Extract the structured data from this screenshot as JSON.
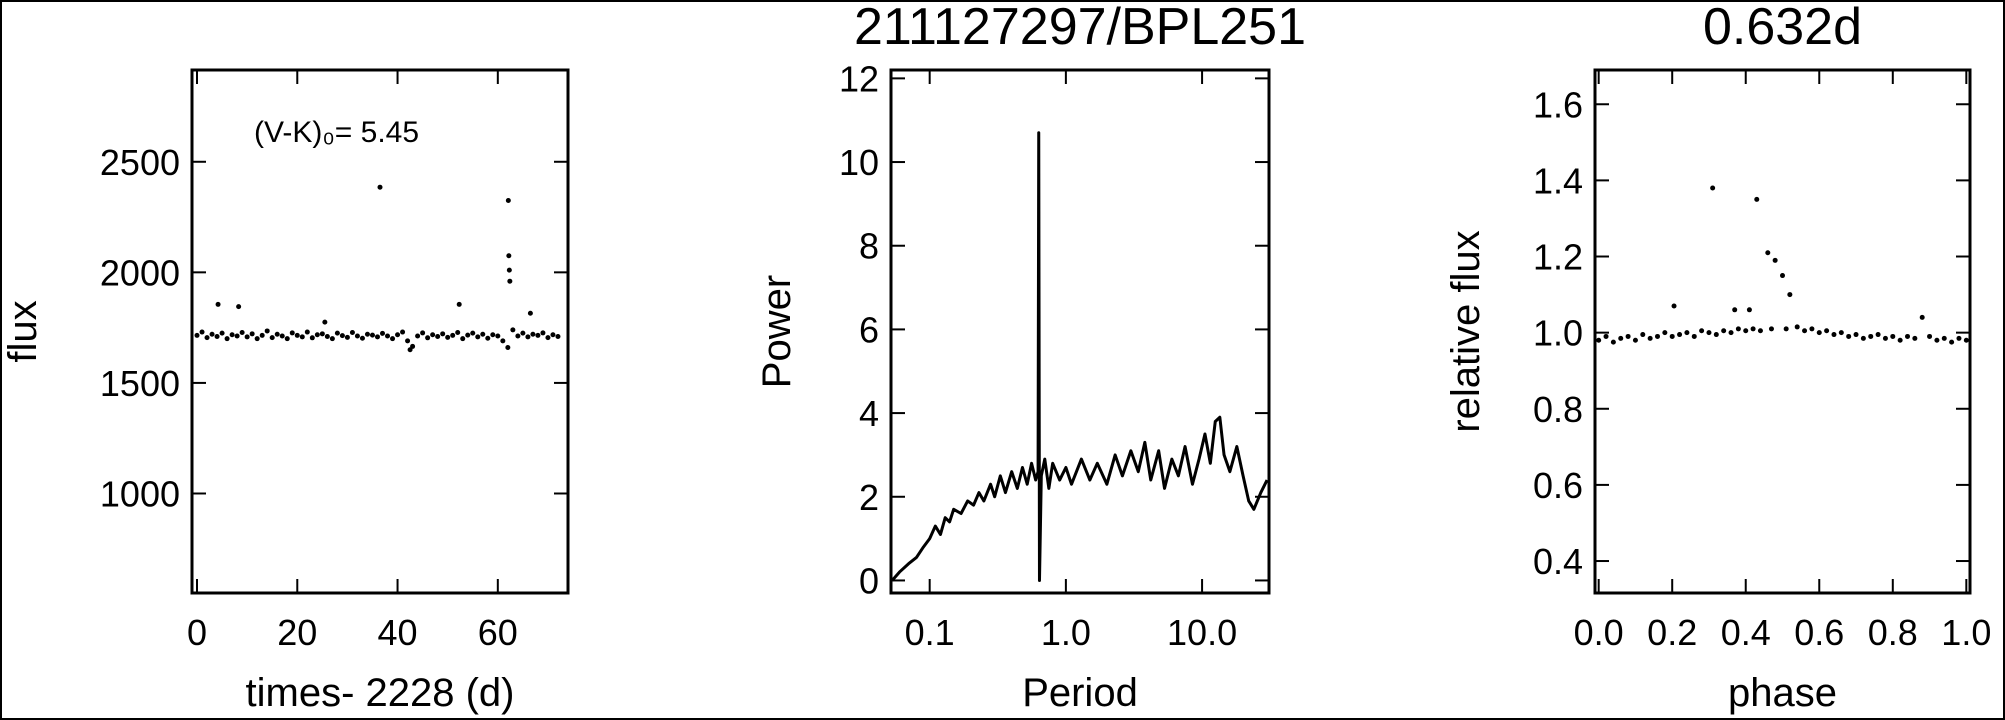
{
  "chart_data": [
    {
      "type": "scatter",
      "annotation": "(V-K)₀= 5.45",
      "x_label": "times- 2228 (d)",
      "y_label": "flux",
      "xlim": [
        -1,
        74
      ],
      "xticks": [
        0,
        20,
        40,
        60
      ],
      "ylim": [
        550,
        2915
      ],
      "yticks": [
        1000,
        1500,
        2000,
        2500
      ],
      "color": "#000000",
      "x": [
        0,
        1,
        2,
        3,
        4,
        4.2,
        5,
        6,
        7,
        8,
        8.3,
        9,
        10,
        11,
        12,
        13,
        14,
        15,
        16,
        17,
        18,
        19,
        20,
        21,
        22,
        23,
        24,
        25,
        25.5,
        26,
        27,
        28,
        29,
        30,
        31,
        32,
        33,
        34,
        35,
        36,
        36.5,
        37,
        38,
        39,
        40,
        41,
        42,
        42.5,
        43,
        44,
        45,
        46,
        47,
        48,
        49,
        50,
        51,
        52,
        52.3,
        53,
        54,
        55,
        56,
        57,
        58,
        59,
        60,
        61,
        62,
        62.1,
        62.2,
        62.3,
        62.4,
        63,
        64,
        65,
        66,
        66.5,
        67,
        68,
        69,
        70,
        71,
        72
      ],
      "values": [
        1715,
        1730,
        1705,
        1720,
        1710,
        1855,
        1725,
        1700,
        1718,
        1712,
        1845,
        1728,
        1708,
        1722,
        1700,
        1715,
        1735,
        1705,
        1720,
        1712,
        1700,
        1726,
        1715,
        1708,
        1730,
        1704,
        1718,
        1722,
        1775,
        1710,
        1700,
        1725,
        1714,
        1706,
        1728,
        1712,
        1702,
        1720,
        1716,
        1708,
        2385,
        1724,
        1712,
        1700,
        1718,
        1730,
        1690,
        1650,
        1665,
        1712,
        1726,
        1704,
        1718,
        1710,
        1722,
        1706,
        1715,
        1728,
        1855,
        1700,
        1716,
        1725,
        1708,
        1720,
        1702,
        1718,
        1712,
        1690,
        1660,
        2325,
        2075,
        2010,
        1960,
        1740,
        1712,
        1725,
        1708,
        1815,
        1720,
        1715,
        1726,
        1705,
        1718,
        1710
      ]
    },
    {
      "type": "line",
      "title": "211127297/BPL251",
      "x_label": "Period",
      "y_label": "Power",
      "xscale": "log",
      "xlim": [
        0.052,
        31
      ],
      "xticks": [
        0.1,
        {
          "value": 1,
          "label": "1.0"
        },
        {
          "value": 10,
          "label": "10.0"
        }
      ],
      "ylim": [
        -0.3,
        12.2
      ],
      "yticks": [
        0,
        2,
        4,
        6,
        8,
        10,
        12
      ],
      "color": "#000000",
      "x": [
        0.053,
        0.06,
        0.07,
        0.08,
        0.09,
        0.1,
        0.11,
        0.12,
        0.13,
        0.14,
        0.15,
        0.17,
        0.19,
        0.21,
        0.23,
        0.25,
        0.28,
        0.3,
        0.33,
        0.36,
        0.4,
        0.44,
        0.48,
        0.52,
        0.56,
        0.6,
        0.625,
        0.632,
        0.64,
        0.66,
        0.7,
        0.75,
        0.8,
        0.9,
        1.0,
        1.1,
        1.3,
        1.5,
        1.7,
        2.0,
        2.3,
        2.6,
        3.0,
        3.4,
        3.8,
        4.2,
        4.8,
        5.3,
        6.0,
        6.7,
        7.5,
        8.5,
        9.5,
        10.5,
        11.5,
        12.5,
        13.5,
        14.5,
        16,
        18,
        20,
        22,
        24,
        27,
        30
      ],
      "values": [
        0.0,
        0.2,
        0.4,
        0.55,
        0.8,
        1.0,
        1.3,
        1.1,
        1.5,
        1.4,
        1.7,
        1.6,
        1.9,
        1.8,
        2.1,
        1.9,
        2.3,
        2.0,
        2.5,
        2.1,
        2.6,
        2.2,
        2.7,
        2.3,
        2.8,
        2.4,
        2.6,
        10.7,
        0.0,
        2.5,
        2.9,
        2.2,
        2.8,
        2.4,
        2.7,
        2.3,
        2.9,
        2.4,
        2.8,
        2.3,
        3.0,
        2.5,
        3.1,
        2.6,
        3.3,
        2.4,
        3.1,
        2.2,
        2.9,
        2.5,
        3.2,
        2.3,
        2.9,
        3.5,
        2.8,
        3.8,
        3.9,
        3.0,
        2.6,
        3.2,
        2.5,
        1.9,
        1.7,
        2.1,
        2.4
      ]
    },
    {
      "type": "scatter",
      "title": "0.632d",
      "x_label": "phase",
      "y_label": "relative flux",
      "xlim": [
        -0.01,
        1.01
      ],
      "xticks": [
        {
          "value": 0,
          "label": "0.0"
        },
        0.2,
        0.4,
        0.6,
        0.8,
        {
          "value": 1,
          "label": "1.0"
        }
      ],
      "ylim": [
        0.316,
        1.69
      ],
      "yticks": [
        0.4,
        0.6,
        0.8,
        {
          "value": 1,
          "label": "1.0"
        },
        1.2,
        1.4,
        1.6
      ],
      "color": "#000000",
      "x": [
        0,
        0.02,
        0.04,
        0.06,
        0.08,
        0.1,
        0.12,
        0.14,
        0.16,
        0.18,
        0.2,
        0.205,
        0.22,
        0.24,
        0.26,
        0.28,
        0.3,
        0.31,
        0.32,
        0.34,
        0.36,
        0.37,
        0.38,
        0.4,
        0.41,
        0.42,
        0.43,
        0.44,
        0.46,
        0.47,
        0.48,
        0.5,
        0.51,
        0.52,
        0.54,
        0.56,
        0.58,
        0.6,
        0.62,
        0.64,
        0.66,
        0.68,
        0.7,
        0.72,
        0.74,
        0.76,
        0.78,
        0.8,
        0.82,
        0.84,
        0.86,
        0.88,
        0.9,
        0.92,
        0.94,
        0.96,
        0.98,
        1.0
      ],
      "values": [
        0.98,
        0.99,
        0.975,
        0.985,
        0.99,
        0.98,
        0.995,
        0.985,
        0.99,
        1.0,
        0.99,
        1.07,
        0.995,
        1.0,
        0.99,
        1.005,
        1.0,
        1.38,
        0.995,
        1.005,
        1.0,
        1.06,
        1.01,
        1.005,
        1.06,
        1.01,
        1.35,
        1.005,
        1.21,
        1.01,
        1.19,
        1.15,
        1.01,
        1.1,
        1.015,
        1.005,
        1.01,
        1.0,
        1.005,
        0.995,
        1.0,
        0.99,
        0.995,
        0.985,
        0.99,
        0.995,
        0.985,
        0.99,
        0.98,
        0.99,
        0.985,
        1.04,
        0.99,
        0.98,
        0.985,
        0.975,
        0.985,
        0.98
      ]
    }
  ]
}
